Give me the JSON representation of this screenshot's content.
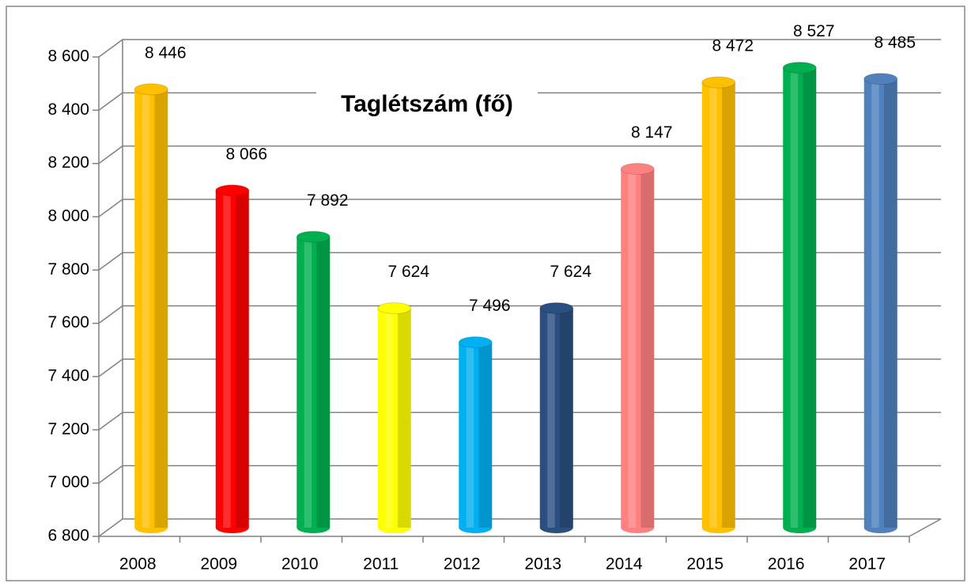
{
  "chart_data": {
    "type": "bar",
    "title": "Taglétszám (fő)",
    "categories": [
      "2008",
      "2009",
      "2010",
      "2011",
      "2012",
      "2013",
      "2014",
      "2015",
      "2016",
      "2017"
    ],
    "values": [
      8446,
      8066,
      7892,
      7624,
      7496,
      7624,
      8147,
      8472,
      8527,
      8485
    ],
    "value_labels": [
      "8 446",
      "8 066",
      "7 892",
      "7 624",
      "7 496",
      "7 624",
      "8 147",
      "8 472",
      "8 527",
      "8 485"
    ],
    "colors": [
      "#ffc000",
      "#ff0000",
      "#00b050",
      "#ffff00",
      "#00b0f0",
      "#2a4f80",
      "#ff8080",
      "#ffc000",
      "#00b050",
      "#4f81bd"
    ],
    "ylim": [
      6800,
      8600
    ],
    "yticks": [
      {
        "value": 6800,
        "label": "6 800"
      },
      {
        "value": 7000,
        "label": "7 000"
      },
      {
        "value": 7200,
        "label": "7 200"
      },
      {
        "value": 7400,
        "label": "7 400"
      },
      {
        "value": 7600,
        "label": "7 600"
      },
      {
        "value": 7800,
        "label": "7 800"
      },
      {
        "value": 8000,
        "label": "8 000"
      },
      {
        "value": 8200,
        "label": "8 200"
      },
      {
        "value": 8400,
        "label": "8 400"
      },
      {
        "value": 8600,
        "label": "8 600"
      }
    ],
    "grid": true
  }
}
